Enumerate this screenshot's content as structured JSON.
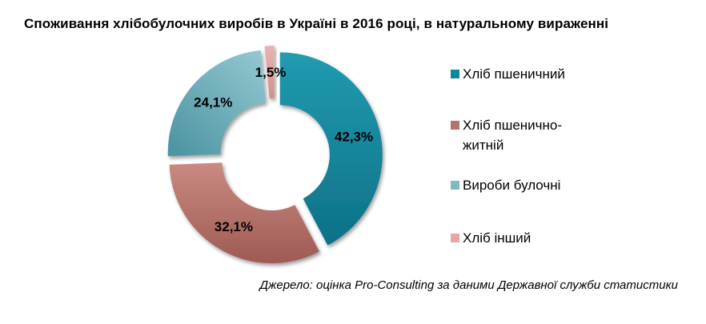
{
  "title": "Споживання хлібобулочних виробів в Україні в 2016 році, в натуральному вираженні",
  "source_note": "Джерело: оцінка Pro-Consulting за даними Державної служби статистики",
  "chart_data": {
    "type": "pie",
    "subtype": "exploded-donut",
    "title": "Споживання хлібобулочних виробів в Україні в 2016 році, в натуральному вираженні",
    "categories": [
      "Хліб пшеничний",
      "Хліб пшенично-житній",
      "Вироби булочні",
      "Хліб інший"
    ],
    "values": [
      42.3,
      32.1,
      24.1,
      1.5
    ],
    "value_labels": [
      "42,3%",
      "32,1%",
      "24,1%",
      "1,5%"
    ],
    "start_angle_deg": 0,
    "direction": "clockwise",
    "legend_position": "right",
    "label_color": "#000000",
    "background": "#ffffff",
    "colors": [
      {
        "name": "teal",
        "legend": "#0f879c",
        "grad_from": "#219bb0",
        "grad_to": "#0d7187"
      },
      {
        "name": "rose",
        "legend": "#b5736c",
        "grad_from": "#c98a81",
        "grad_to": "#9e5a54"
      },
      {
        "name": "light-teal",
        "legend": "#7fb8c1",
        "grad_from": "#90c5cd",
        "grad_to": "#4f96a4"
      },
      {
        "name": "pink",
        "legend": "#e4a7a5",
        "grad_from": "#eab3b1",
        "grad_to": "#d18f8d"
      }
    ]
  }
}
